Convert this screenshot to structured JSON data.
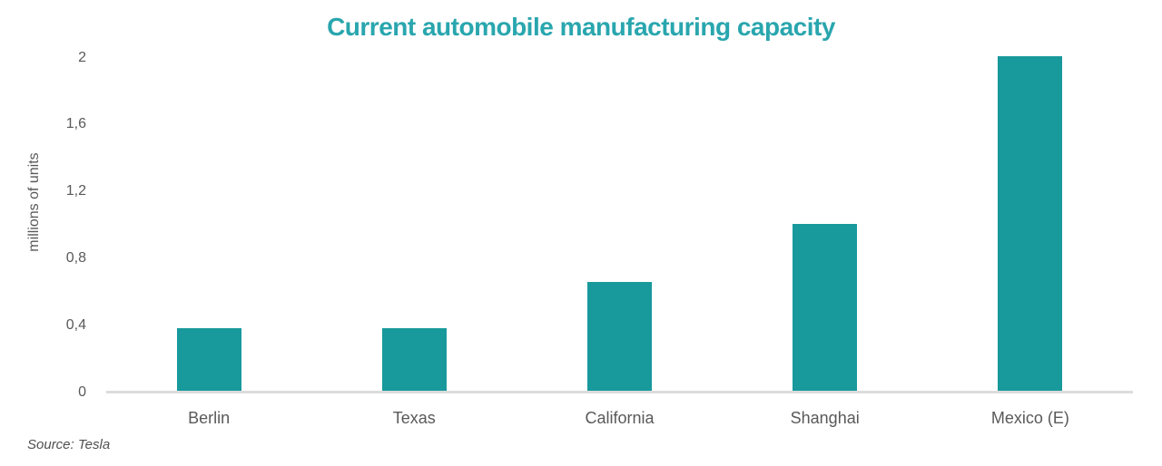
{
  "chart_data": {
    "type": "bar",
    "title": "Current automobile manufacturing capacity",
    "categories": [
      "Berlin",
      "Texas",
      "California",
      "Shanghai",
      "Mexico (E)"
    ],
    "values": [
      0.375,
      0.375,
      0.65,
      1.0,
      2.0
    ],
    "xlabel": "",
    "ylabel": "millions of units",
    "ylim": [
      0,
      2
    ],
    "yticks": [
      {
        "value": 0,
        "label": "0"
      },
      {
        "value": 0.4,
        "label": "0,4"
      },
      {
        "value": 0.8,
        "label": "0,8"
      },
      {
        "value": 1.2,
        "label": "1,2"
      },
      {
        "value": 1.6,
        "label": "1,6"
      },
      {
        "value": 2,
        "label": "2"
      }
    ],
    "grid": false,
    "legend": false,
    "decimal_separator": ",",
    "source": "Source: Tesla",
    "colors": {
      "bar": "#18999C",
      "title": "#29A6AE",
      "axis_text": "#595959",
      "baseline": "#DCDCDC",
      "background": "#FFFFFF"
    }
  }
}
